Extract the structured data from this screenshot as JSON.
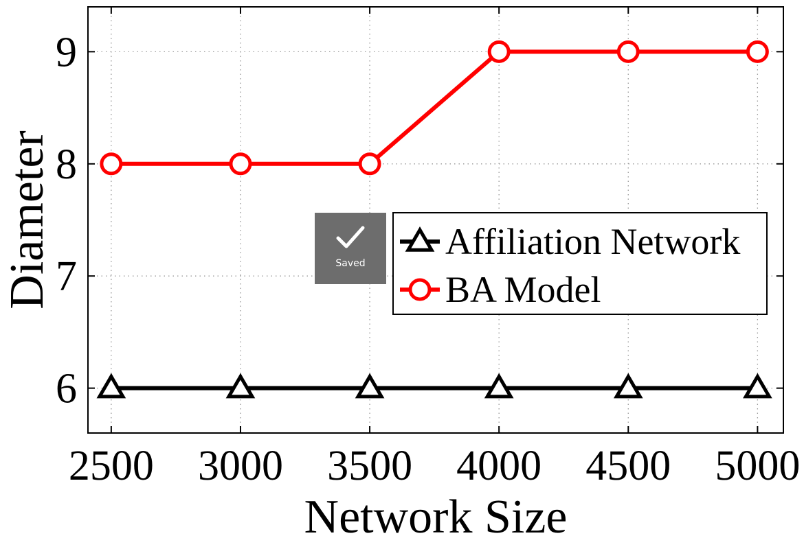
{
  "chart_data": {
    "type": "line",
    "title": "",
    "xlabel": "Network Size",
    "ylabel": "Diameter",
    "x": [
      2500,
      3000,
      3500,
      4000,
      4500,
      5000
    ],
    "xticks": [
      "2500",
      "3000",
      "3500",
      "4000",
      "4500",
      "5000"
    ],
    "yticks": [
      "6",
      "7",
      "8",
      "9"
    ],
    "xlim": [
      2410,
      5100
    ],
    "ylim": [
      5.6,
      9.4
    ],
    "grid": true,
    "legend_position": "center-right",
    "series": [
      {
        "name": "Affiliation Network",
        "values": [
          6,
          6,
          6,
          6,
          6,
          6
        ],
        "color": "#000000",
        "marker": "triangle"
      },
      {
        "name": "BA Model",
        "values": [
          8,
          8,
          8,
          9,
          9,
          9
        ],
        "color": "#ff0000",
        "marker": "circle"
      }
    ]
  },
  "toast": {
    "label": "Saved",
    "icon": "checkmark-icon"
  }
}
